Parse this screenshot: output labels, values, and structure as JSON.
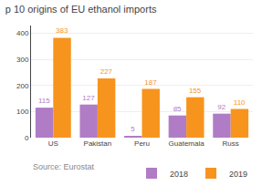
{
  "chart_data": {
    "type": "bar",
    "title": "p 10 origins of EU ethanol imports",
    "categories": [
      "US",
      "Pakistan",
      "Peru",
      "Guatemala",
      "Russ"
    ],
    "series": [
      {
        "name": "2018",
        "color": "#b07cc6",
        "values": [
          115,
          127,
          5,
          85,
          92
        ]
      },
      {
        "name": "2019",
        "color": "#f7941d",
        "values": [
          383,
          227,
          187,
          155,
          110
        ]
      }
    ],
    "ylim": [
      0,
      430
    ],
    "yticks": [
      0,
      100,
      200,
      300,
      400
    ],
    "grid": true,
    "data_labels": true,
    "legend": "bottom",
    "annotations": [
      "Source: Eurostat"
    ]
  }
}
